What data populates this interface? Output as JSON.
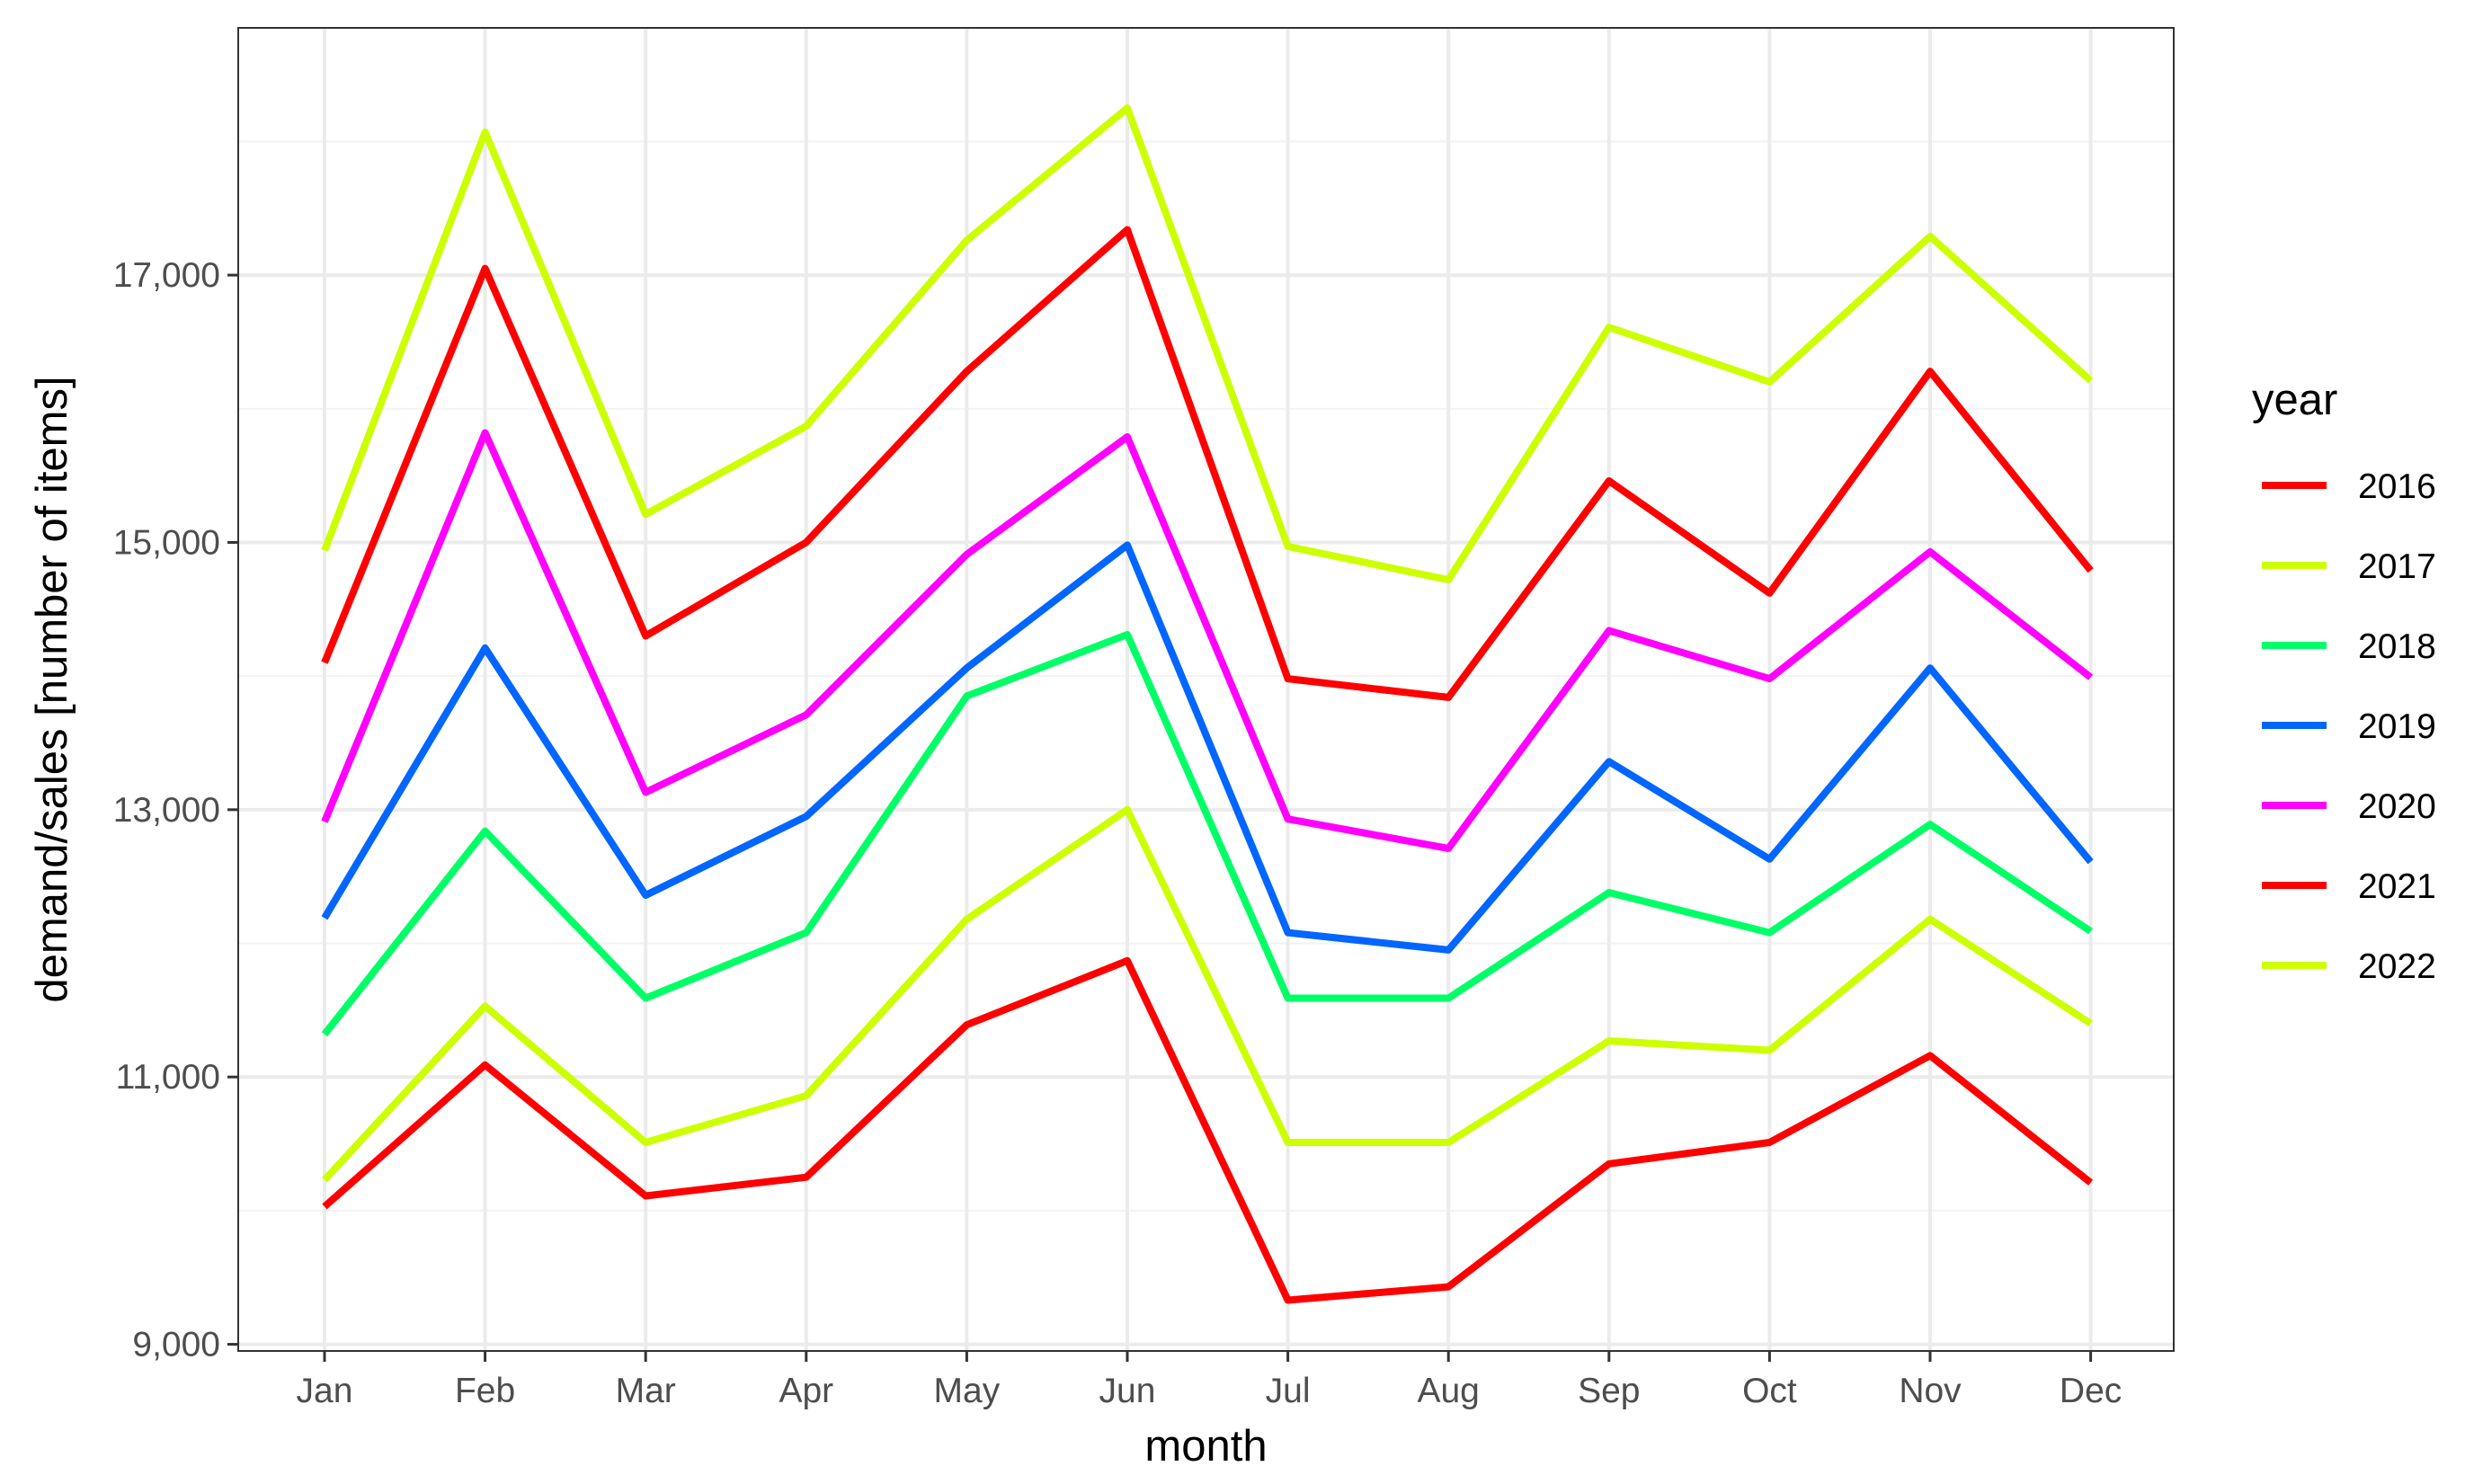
{
  "chart_data": {
    "type": "line",
    "title": "",
    "xlabel": "month",
    "ylabel": "demand/sales [number of items]",
    "categories": [
      "Jan",
      "Feb",
      "Mar",
      "Apr",
      "May",
      "Jun",
      "Jul",
      "Aug",
      "Sep",
      "Oct",
      "Nov",
      "Dec"
    ],
    "ylim": [
      8950,
      18850
    ],
    "y_ticks": [
      9000,
      11000,
      13000,
      15000,
      17000
    ],
    "y_tick_labels": [
      "9,000",
      "11,000",
      "13,000",
      "15,000",
      "17,000"
    ],
    "grid": true,
    "legend": {
      "title": "year",
      "position": "right"
    },
    "series": [
      {
        "name": "2016",
        "color": "#ff0000",
        "values": [
          10030,
          11090,
          10110,
          10250,
          11390,
          11870,
          9330,
          9430,
          10350,
          10510,
          11160,
          10210
        ]
      },
      {
        "name": "2017",
        "color": "#ccff00",
        "values": [
          10230,
          11530,
          10510,
          10860,
          12180,
          13000,
          10510,
          10510,
          11270,
          11200,
          12180,
          11400
        ]
      },
      {
        "name": "2018",
        "color": "#00ff66",
        "values": [
          11320,
          12840,
          11590,
          12080,
          13850,
          14310,
          11590,
          11590,
          12380,
          12080,
          12890,
          12090
        ]
      },
      {
        "name": "2019",
        "color": "#0066ff",
        "values": [
          12190,
          14210,
          12360,
          12950,
          14060,
          14980,
          12080,
          11950,
          13360,
          12630,
          14060,
          12610
        ]
      },
      {
        "name": "2020",
        "color": "#ff00ff",
        "values": [
          12910,
          15820,
          13130,
          13710,
          14910,
          15790,
          12930,
          12710,
          14340,
          13980,
          14930,
          13990
        ]
      },
      {
        "name": "2021",
        "color": "#ff0000",
        "values": [
          14100,
          17050,
          14300,
          15000,
          16280,
          17340,
          13980,
          13840,
          15460,
          14620,
          16280,
          14790
        ]
      },
      {
        "name": "2022",
        "color": "#ccff00",
        "values": [
          14940,
          18070,
          15210,
          15870,
          17260,
          18250,
          14970,
          14720,
          16610,
          16200,
          17290,
          16210
        ]
      }
    ]
  }
}
